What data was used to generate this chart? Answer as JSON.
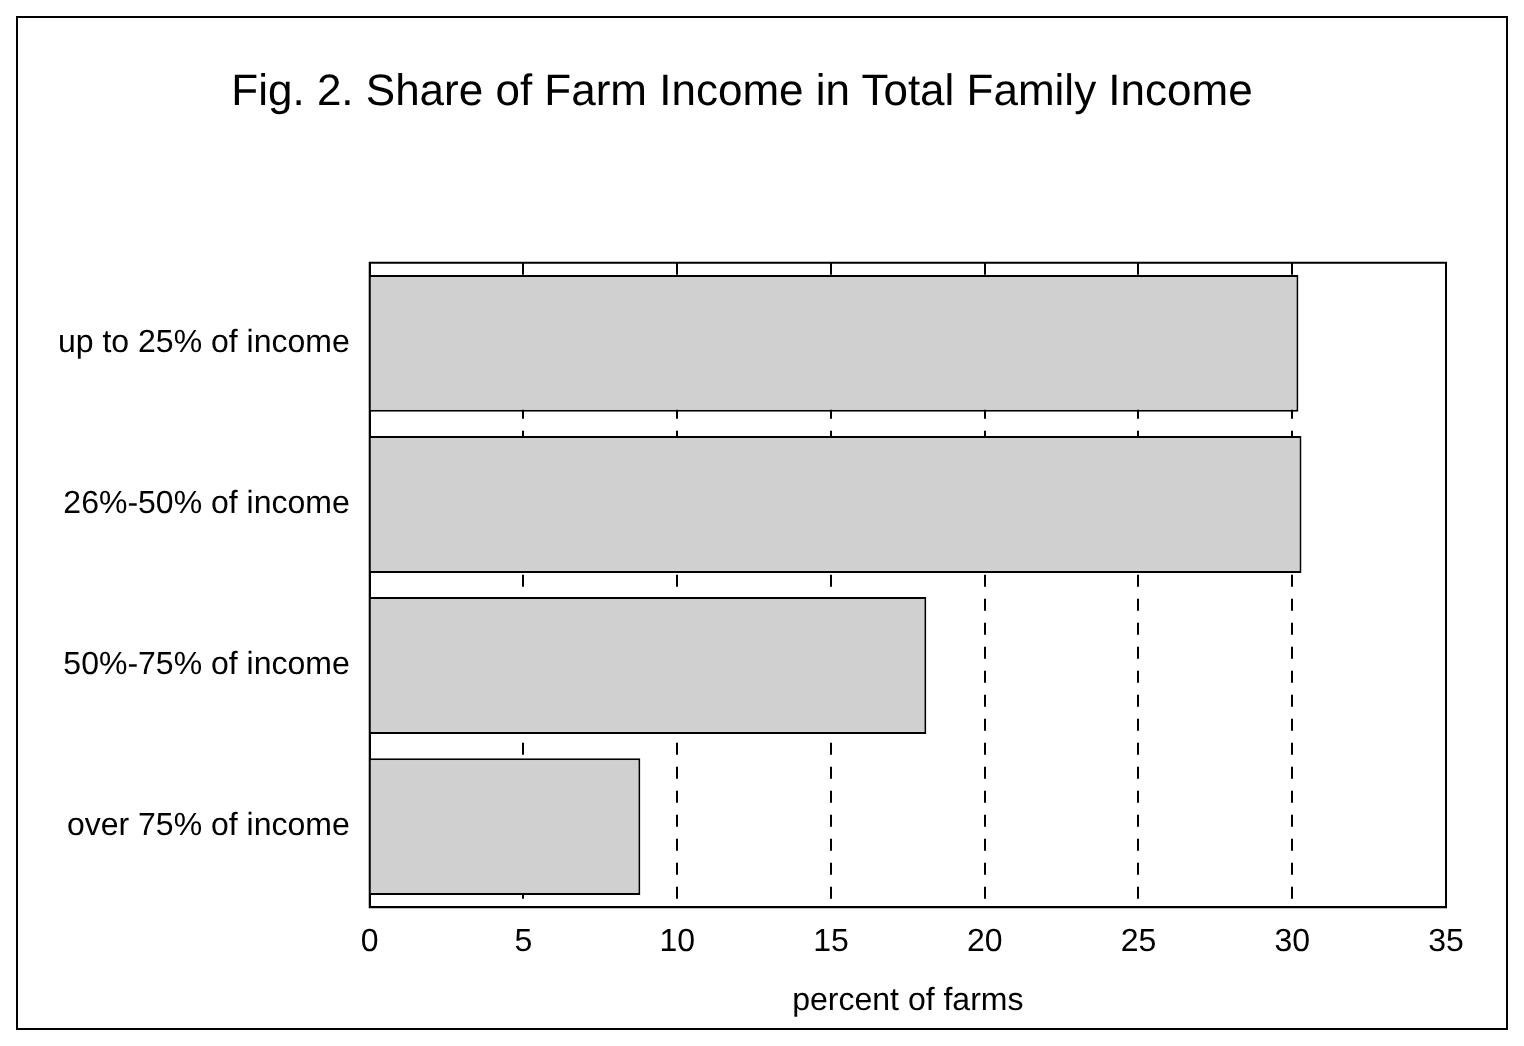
{
  "chart_data": {
    "type": "bar",
    "orientation": "horizontal",
    "title": "Fig. 2. Share of Farm Income in Total Family Income",
    "xlabel": "percent of farms",
    "categories": [
      "up to 25% of income",
      "26%-50% of income",
      "50%-75% of income",
      "over 75% of income"
    ],
    "values": [
      30.2,
      30.3,
      18.1,
      8.8
    ],
    "color": "#d0d0d0",
    "xlim": [
      0,
      35
    ],
    "xticks": [
      0,
      5,
      10,
      15,
      20,
      25,
      30,
      35
    ],
    "grid": "x",
    "line_style": "dashed",
    "legend": false
  }
}
